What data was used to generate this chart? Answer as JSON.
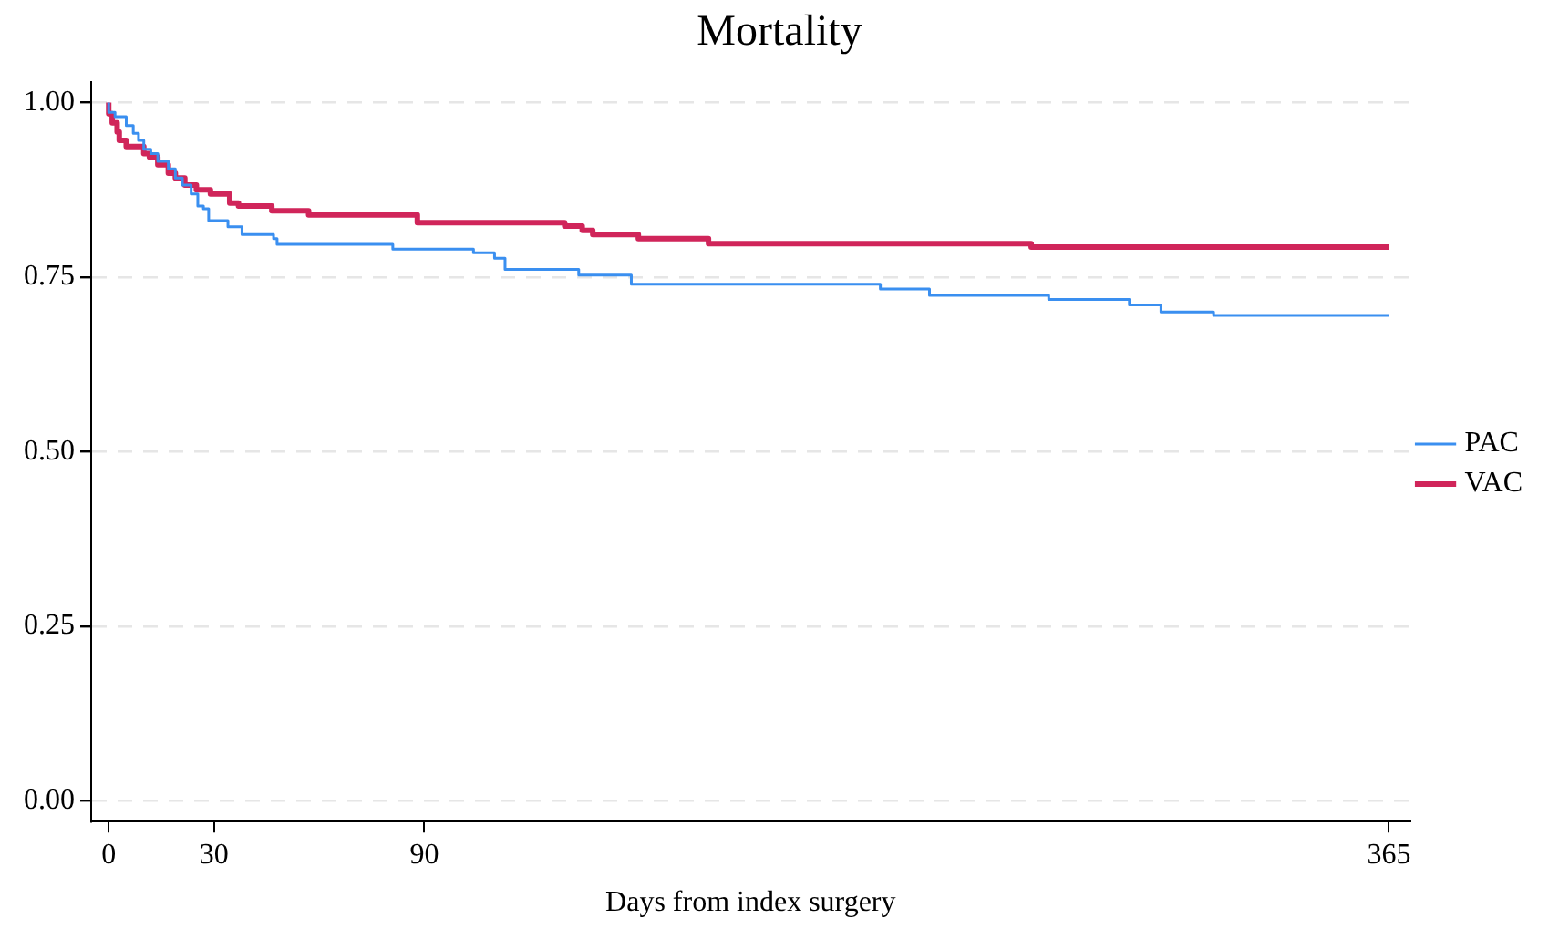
{
  "chart_data": {
    "type": "step",
    "title": "Mortality",
    "xlabel": "Days from index surgery",
    "xlim": [
      -5,
      371
    ],
    "xticks": [
      0,
      30,
      90,
      365
    ],
    "ylim": [
      -0.03,
      1.03
    ],
    "yticks": [
      {
        "value": 0,
        "label": "0.00"
      },
      {
        "value": 0.25,
        "label": "0.25"
      },
      {
        "value": 0.5,
        "label": "0.50"
      },
      {
        "value": 0.75,
        "label": "0.75"
      },
      {
        "value": 1,
        "label": "1.00"
      }
    ],
    "grid": "y",
    "legend": "right",
    "marker": "none",
    "line_style": "solid",
    "series": [
      {
        "name": "PAC",
        "color": "#3a8ff0",
        "x": [
          0,
          1.8,
          5,
          7,
          8.5,
          10,
          12,
          14,
          17,
          19,
          21,
          23.5,
          25.4,
          27,
          28.5,
          34,
          38,
          47,
          48,
          81,
          104,
          110,
          113,
          134,
          149,
          220,
          234,
          268,
          291,
          300,
          315,
          319,
          365
        ],
        "values": [
          1,
          0.986,
          0.98,
          0.967,
          0.956,
          0.946,
          0.933,
          0.927,
          0.916,
          0.905,
          0.892,
          0.882,
          0.869,
          0.852,
          0.848,
          0.831,
          0.822,
          0.811,
          0.805,
          0.797,
          0.79,
          0.785,
          0.777,
          0.761,
          0.753,
          0.74,
          0.733,
          0.724,
          0.718,
          0.71,
          0.7,
          0.695,
          0.695
        ]
      },
      {
        "name": "VAC",
        "color": "#d0255a",
        "x": [
          0,
          1,
          2.4,
          3,
          5,
          10,
          11.6,
          14,
          17,
          19,
          21.7,
          25,
          29,
          34.5,
          37,
          46.5,
          57,
          88,
          130,
          135,
          138,
          151,
          171,
          263,
          329,
          365
        ],
        "values": [
          1,
          0.984,
          0.971,
          0.958,
          0.946,
          0.937,
          0.927,
          0.922,
          0.911,
          0.899,
          0.892,
          0.882,
          0.875,
          0.869,
          0.856,
          0.852,
          0.845,
          0.839,
          0.828,
          0.823,
          0.817,
          0.811,
          0.805,
          0.798,
          0.793,
          0.793
        ]
      }
    ]
  }
}
